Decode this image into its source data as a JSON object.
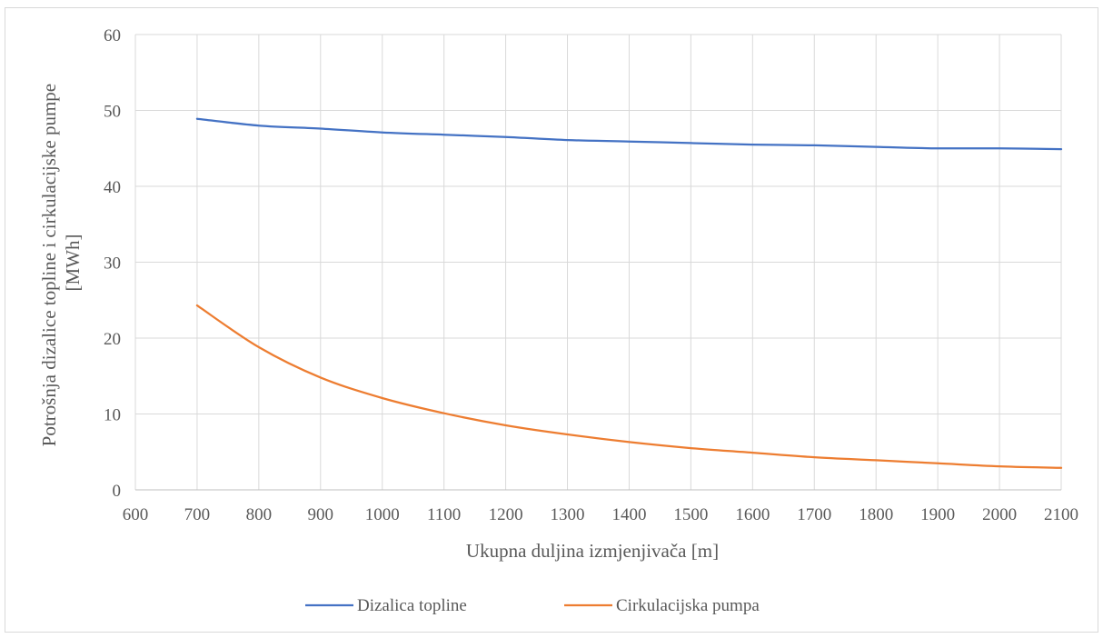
{
  "chart_data": {
    "type": "line",
    "title": "",
    "xlabel": "Ukupna duljina izmjenjivača [m]",
    "ylabel_lines": [
      "Potrošnja dizalice topline i cirkulacijske pumpe",
      "[MWh]"
    ],
    "xlim": [
      600,
      2100
    ],
    "ylim": [
      0,
      60
    ],
    "xticks": [
      600,
      700,
      800,
      900,
      1000,
      1100,
      1200,
      1300,
      1400,
      1500,
      1600,
      1700,
      1800,
      1900,
      2000,
      2100
    ],
    "yticks": [
      0,
      10,
      20,
      30,
      40,
      50,
      60
    ],
    "grid": true,
    "legend_position": "bottom",
    "x": [
      700,
      800,
      900,
      1000,
      1100,
      1200,
      1300,
      1400,
      1500,
      1600,
      1700,
      1800,
      1900,
      2000,
      2100
    ],
    "series": [
      {
        "name": "Dizalica topline",
        "color": "#4472c4",
        "values": [
          48.9,
          48.0,
          47.6,
          47.1,
          46.8,
          46.5,
          46.1,
          45.9,
          45.7,
          45.5,
          45.4,
          45.2,
          45.0,
          45.0,
          44.9
        ]
      },
      {
        "name": "Cirkulacijska pumpa",
        "color": "#ed7d31",
        "values": [
          24.3,
          18.8,
          14.8,
          12.1,
          10.1,
          8.5,
          7.3,
          6.3,
          5.5,
          4.9,
          4.3,
          3.9,
          3.5,
          3.1,
          2.9
        ]
      }
    ]
  }
}
